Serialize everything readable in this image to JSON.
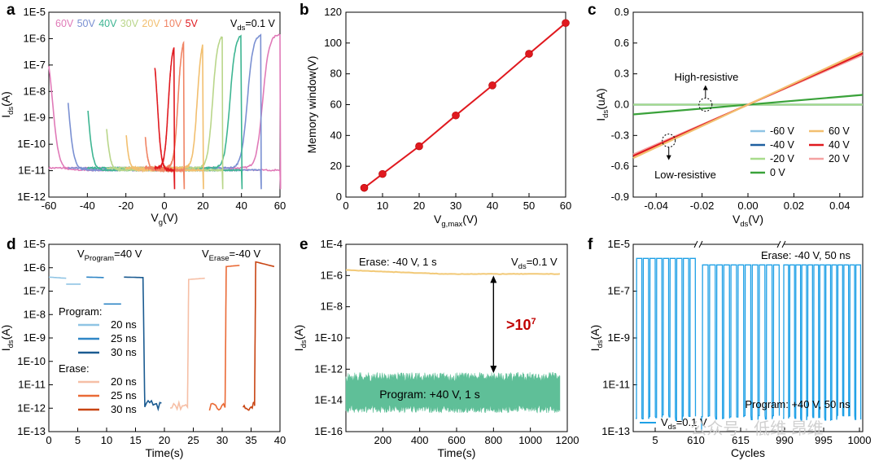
{
  "figure": {
    "watermark": "公众号 · 低维 昂维"
  },
  "chart_data": [
    {
      "panel": "a",
      "type": "line",
      "xlabel_main": "V",
      "xlabel_sub": "g",
      "xlabel_tail": "(V)",
      "ylabel_main": "I",
      "ylabel_sub": "ds",
      "ylabel_tail": "(A)",
      "xlim": [
        -60,
        60
      ],
      "ylog_range": [
        -12,
        -5
      ],
      "xticks": [
        -60,
        -40,
        -20,
        0,
        20,
        40,
        60
      ],
      "ytick_labels": [
        "1E-12",
        "1E-11",
        "1E-10",
        "1E-9",
        "1E-8",
        "1E-7",
        "1E-6",
        "1E-5"
      ],
      "annotation_main": "V",
      "annotation_sub": "ds",
      "annotation_tail": "=0.1 V",
      "series": [
        {
          "name": "60V",
          "color": "#e07ab8",
          "vmax": 60,
          "log_on": -5.82,
          "fwd_vth": 51,
          "rev_vth": -58
        },
        {
          "name": "50V",
          "color": "#7a90d2",
          "vmax": 50,
          "log_on": -5.82,
          "fwd_vth": 43,
          "rev_vth": -50
        },
        {
          "name": "40V",
          "color": "#3db592",
          "vmax": 40,
          "log_on": -5.82,
          "fwd_vth": 34,
          "rev_vth": -40
        },
        {
          "name": "30V",
          "color": "#b9d68a",
          "vmax": 30,
          "log_on": -5.83,
          "fwd_vth": 25,
          "rev_vth": -31
        },
        {
          "name": "20V",
          "color": "#f2bf6f",
          "vmax": 20,
          "log_on": -5.85,
          "fwd_vth": 17,
          "rev_vth": -21
        },
        {
          "name": "10V",
          "color": "#f08464",
          "vmax": 10,
          "log_on": -5.9,
          "fwd_vth": 7,
          "rev_vth": -11
        },
        {
          "name": "5V",
          "color": "#e0191f",
          "vmax": 5,
          "log_on": -6.15,
          "fwd_vth": 2,
          "rev_vth": -3.5
        }
      ]
    },
    {
      "panel": "b",
      "type": "line",
      "xlabel_main": "V",
      "xlabel_sub": "g,max",
      "xlabel_tail": "(V)",
      "ylabel": "Memory window(V)",
      "xlim": [
        0,
        60
      ],
      "ylim": [
        0,
        120
      ],
      "xticks": [
        0,
        10,
        20,
        30,
        40,
        50,
        60
      ],
      "yticks": [
        0,
        20,
        40,
        60,
        80,
        100,
        120
      ],
      "x": [
        5,
        10,
        20,
        30,
        40,
        50,
        60
      ],
      "y": [
        6,
        15,
        33,
        53,
        72.5,
        93,
        113
      ],
      "color": "#e0191f"
    },
    {
      "panel": "c",
      "type": "line",
      "xlabel_main": "V",
      "xlabel_sub": "ds",
      "xlabel_tail": "(V)",
      "ylabel_main": "I",
      "ylabel_sub": "ds",
      "ylabel_tail": "(uA)",
      "xlim": [
        -0.05,
        0.05
      ],
      "ylim": [
        -0.9,
        0.9
      ],
      "xticks": [
        -0.04,
        -0.02,
        0.0,
        0.02,
        0.04
      ],
      "xtick_labels": [
        "-0.04",
        "-0.02",
        "0.00",
        "0.02",
        "0.04"
      ],
      "yticks": [
        -0.9,
        -0.6,
        -0.3,
        0.0,
        0.3,
        0.6,
        0.9
      ],
      "ytick_labels": [
        "-0.9",
        "-0.6",
        "-0.3",
        "0.0",
        "0.3",
        "0.6",
        "0.9"
      ],
      "annotations": {
        "high": "High-resistive",
        "low": "Low-resistive"
      },
      "series": [
        {
          "name": "-60 V",
          "color": "#8fc4e4",
          "slope": 0.0
        },
        {
          "name": "-40 V",
          "color": "#1f5fa0",
          "slope": 0.0
        },
        {
          "name": "-20 V",
          "color": "#a8dc8c",
          "slope": 0.0
        },
        {
          "name": "0 V",
          "color": "#3aa23a",
          "slope": 1.9
        },
        {
          "name": "60 V",
          "color": "#f2bf6f",
          "slope": 10.4
        },
        {
          "name": "40 V",
          "color": "#e0191f",
          "slope": 10.0
        },
        {
          "name": "20 V",
          "color": "#f4a1a1",
          "slope": 9.7
        }
      ]
    },
    {
      "panel": "d",
      "type": "line",
      "xlabel": "Time(s)",
      "ylabel_main": "I",
      "ylabel_sub": "ds",
      "ylabel_tail": "(A)",
      "xlim": [
        0,
        40
      ],
      "ylog_range": [
        -13,
        -5
      ],
      "xticks": [
        0,
        5,
        10,
        15,
        20,
        25,
        30,
        35,
        40
      ],
      "ytick_labels": [
        "1E-13",
        "1E-12",
        "1E-11",
        "1E-10",
        "1E-9",
        "1E-8",
        "1E-7",
        "1E-6",
        "1E-5"
      ],
      "vprog_main": "V",
      "vprog_sub": "Program",
      "vprog_tail": "=40 V",
      "verase_main": "V",
      "verase_sub": "Erase",
      "verase_tail": "=-40 V",
      "program_title": "Program:",
      "erase_title": "Erase:",
      "series": [
        {
          "group": "Program",
          "name": "20 ns",
          "color": "#8fc4e4",
          "segments": [
            [
              [
                0,
                -6.4
              ],
              [
                3,
                -6.45
              ]
            ],
            [
              [
                3,
                -6.7
              ],
              [
                5.5,
                -6.7
              ]
            ]
          ]
        },
        {
          "group": "Program",
          "name": "25 ns",
          "color": "#2f86c6",
          "segments": [
            [
              [
                6.5,
                -6.4
              ],
              [
                9.5,
                -6.42
              ]
            ],
            [
              [
                9.5,
                -7.55
              ],
              [
                12.5,
                -7.55
              ]
            ]
          ]
        },
        {
          "group": "Program",
          "name": "30 ns",
          "color": "#1b5b91",
          "segments": [
            [
              [
                13,
                -6.4
              ],
              [
                16.3,
                -6.42
              ],
              [
                16.6,
                -11.8
              ],
              [
                19.5,
                -11.9
              ]
            ]
          ]
        },
        {
          "group": "Erase",
          "name": "20 ns",
          "color": "#f6bfa6",
          "segments": [
            [
              [
                21,
                -11.95
              ],
              [
                24,
                -11.9
              ],
              [
                24.2,
                -6.5
              ],
              [
                27,
                -6.45
              ]
            ]
          ]
        },
        {
          "group": "Erase",
          "name": "25 ns",
          "color": "#ea6a36",
          "segments": [
            [
              [
                27.8,
                -11.95
              ],
              [
                30.5,
                -11.9
              ],
              [
                30.7,
                -5.95
              ],
              [
                33,
                -5.9
              ]
            ]
          ]
        },
        {
          "group": "Erase",
          "name": "30 ns",
          "color": "#c84412",
          "segments": [
            [
              [
                33.6,
                -11.95
              ],
              [
                35.6,
                -11.9
              ],
              [
                35.8,
                -5.75
              ],
              [
                39,
                -5.95
              ]
            ]
          ]
        }
      ]
    },
    {
      "panel": "e",
      "type": "line",
      "xlabel": "Time(s)",
      "ylabel_main": "I",
      "ylabel_sub": "ds",
      "ylabel_tail": "(A)",
      "xlim": [
        0,
        1200
      ],
      "ylog_range": [
        -16,
        -4
      ],
      "xticks": [
        200,
        400,
        600,
        800,
        1000,
        1200
      ],
      "ytick_labels": [
        "1E-16",
        "1E-14",
        "1E-12",
        "1E-10",
        "1E-8",
        "1E-6",
        "1E-4"
      ],
      "erase_label": "Erase: -40 V, 1 s",
      "program_label": "Program: +40 V, 1 s",
      "vds_main": "V",
      "vds_sub": "ds",
      "vds_tail": "=0.1 V",
      "ratio_main": ">10",
      "ratio_exp": "7",
      "erase_color": "#f2c977",
      "program_color": "#5fbf98",
      "ratio_color": "#c00000",
      "erase_log_start": -5.65,
      "erase_log_end": -5.9,
      "program_log_band": [
        -14.8,
        -12.2
      ]
    },
    {
      "panel": "f",
      "type": "line",
      "xlabel": "Cycles",
      "ylabel_main": "I",
      "ylabel_sub": "ds",
      "ylabel_tail": "(A)",
      "ylog_range": [
        -13,
        -5
      ],
      "ytick_labels": [
        "1E-13",
        "1E-11",
        "1E-9",
        "1E-7",
        "1E-5"
      ],
      "xtick_labels": [
        "5",
        "610",
        "615",
        "990",
        "995",
        "1000"
      ],
      "erase_label": "Erase: -40 V, 50 ns",
      "program_label": "Program: +40 V, 50 ns",
      "legend_main": "V",
      "legend_sub": "ds",
      "legend_tail": "=0.1 V",
      "color": "#1ea0e6",
      "high_log": -5.6,
      "low_log": -12.4,
      "segments": [
        {
          "from": 1,
          "to": 9
        },
        {
          "from": 608,
          "to": 618
        },
        {
          "from": 988,
          "to": 1000
        }
      ]
    }
  ]
}
